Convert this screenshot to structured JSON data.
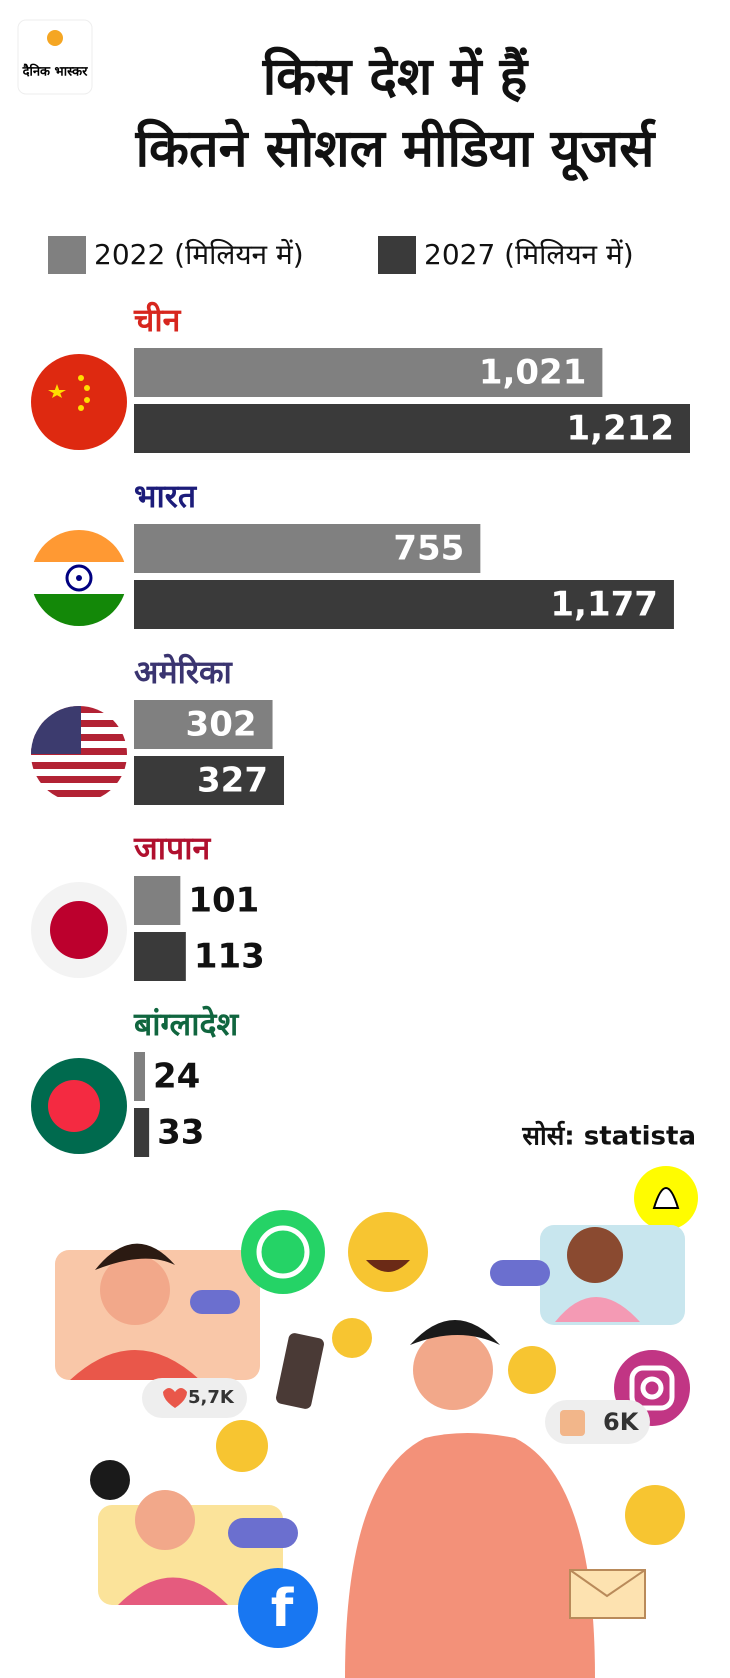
{
  "logo": "दैनिक भास्कर",
  "chart_data": {
    "type": "hbar",
    "title": "किस देश में हैं कितने सोशल मीडिया यूजर्स",
    "categories": [
      "चीन",
      "भारत",
      "अमेरिका",
      "जापान",
      "बांग्लादेश"
    ],
    "category_colors": [
      "#d7261e",
      "#1c1c7a",
      "#3a3470",
      "#b0102e",
      "#10663f"
    ],
    "series": [
      {
        "name": "2022 (मिलियन में)",
        "color": "#808080",
        "values": [
          1021,
          755,
          302,
          101,
          24
        ],
        "value_labels": [
          "1,021",
          "755",
          "302",
          "101",
          "24"
        ]
      },
      {
        "name": "2027 (मिलियन में)",
        "color": "#3a3a3a",
        "values": [
          1212,
          1177,
          327,
          113,
          33
        ],
        "value_labels": [
          "1,212",
          "1,177",
          "327",
          "113",
          "33"
        ]
      }
    ],
    "source": "सोर्स: statista"
  },
  "illustration": {
    "likes": "5,7K",
    "thumbs": "6K"
  }
}
